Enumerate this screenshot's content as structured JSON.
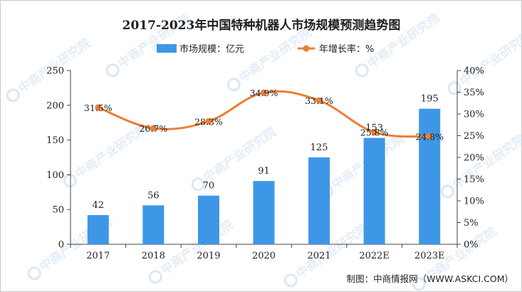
{
  "chart_data": {
    "type": "bar",
    "title": "2017-2023年中国特种机器人市场规模预测趋势图",
    "categories": [
      "2017",
      "2018",
      "2019",
      "2020",
      "2021",
      "2022E",
      "2023E"
    ],
    "series": [
      {
        "name": "市场规模：亿元",
        "type": "bar",
        "axis": "left",
        "values": [
          42,
          56,
          70,
          91,
          125,
          153,
          195
        ],
        "color": "#3e97e6"
      },
      {
        "name": "年增长率：%",
        "type": "line",
        "axis": "right",
        "values": [
          31.5,
          26.7,
          28.3,
          34.9,
          33.1,
          25.8,
          24.8
        ],
        "labels": [
          "31.5%",
          "26.7%",
          "28.3%",
          "34.9%",
          "33.1%",
          "25.8%",
          "24.8%"
        ],
        "color": "#ee7d31"
      }
    ],
    "y_left": {
      "lim": [
        0,
        250
      ],
      "ticks": [
        "0",
        "50",
        "100",
        "150",
        "200",
        "250"
      ]
    },
    "y_right": {
      "lim": [
        0,
        40
      ],
      "ticks": [
        "0%",
        "5%",
        "10%",
        "15%",
        "20%",
        "25%",
        "30%",
        "35%",
        "40%"
      ]
    },
    "grid": false,
    "legend_position": "top-center"
  },
  "footer": {
    "source": "制图：中商情报网（WWW.ASKCI.COM）"
  },
  "watermark": {
    "text": "中商产业研究院"
  }
}
